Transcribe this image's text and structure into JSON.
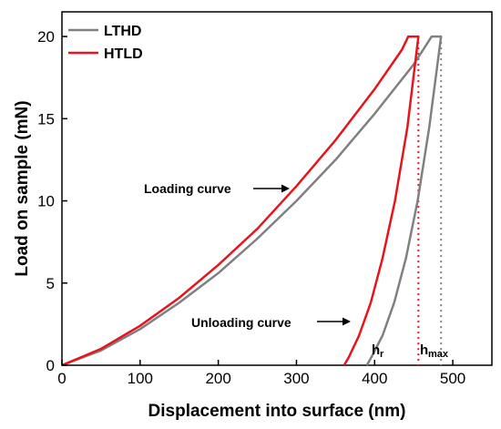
{
  "chart_data": {
    "type": "line",
    "title": "",
    "xlabel": "Displacement into surface (nm)",
    "ylabel": "Load on sample (mN)",
    "xlim": [
      0,
      550
    ],
    "ylim": [
      0,
      21.5
    ],
    "xticks": [
      0,
      100,
      200,
      300,
      400,
      500
    ],
    "yticks": [
      0,
      5,
      10,
      15,
      20
    ],
    "grid": false,
    "legend_position": "top-left",
    "series": [
      {
        "name": "LTHD",
        "color": "#808080",
        "loading": [
          [
            0,
            0
          ],
          [
            50,
            0.9
          ],
          [
            100,
            2.2
          ],
          [
            150,
            3.8
          ],
          [
            200,
            5.6
          ],
          [
            250,
            7.7
          ],
          [
            300,
            10.0
          ],
          [
            350,
            12.5
          ],
          [
            400,
            15.3
          ],
          [
            450,
            18.3
          ],
          [
            473,
            20
          ]
        ],
        "hold": [
          [
            473,
            20
          ],
          [
            485,
            20
          ]
        ],
        "unloading": [
          [
            485,
            20
          ],
          [
            470,
            14.5
          ],
          [
            455,
            10.0
          ],
          [
            440,
            6.5
          ],
          [
            425,
            3.8
          ],
          [
            410,
            1.8
          ],
          [
            396,
            0.5
          ],
          [
            390,
            0
          ]
        ]
      },
      {
        "name": "HTLD",
        "color": "#e8141c",
        "loading": [
          [
            0,
            0
          ],
          [
            50,
            1.0
          ],
          [
            100,
            2.4
          ],
          [
            150,
            4.1
          ],
          [
            200,
            6.1
          ],
          [
            250,
            8.3
          ],
          [
            300,
            10.9
          ],
          [
            350,
            13.7
          ],
          [
            400,
            16.8
          ],
          [
            435,
            19.2
          ],
          [
            443,
            20
          ]
        ],
        "hold": [
          [
            443,
            20
          ],
          [
            456,
            20
          ]
        ],
        "unloading": [
          [
            456,
            20
          ],
          [
            442,
            14.5
          ],
          [
            426,
            10.0
          ],
          [
            410,
            6.5
          ],
          [
            395,
            3.8
          ],
          [
            380,
            1.8
          ],
          [
            367,
            0.5
          ],
          [
            361,
            0
          ]
        ]
      }
    ],
    "annotations": {
      "loading_curve": {
        "text": "Loading curve",
        "target": [
          310,
          12
        ]
      },
      "unloading_curve": {
        "text": "Unloading curve",
        "target": [
          382,
          3.2
        ]
      },
      "hr": {
        "main": "h",
        "sub": "r"
      },
      "hmax": {
        "main": "h",
        "sub": "max"
      }
    },
    "vlines": [
      {
        "x": 485,
        "color": "#808080",
        "style": "dotted"
      },
      {
        "x": 456,
        "color": "#e8141c",
        "style": "dotted"
      }
    ]
  }
}
